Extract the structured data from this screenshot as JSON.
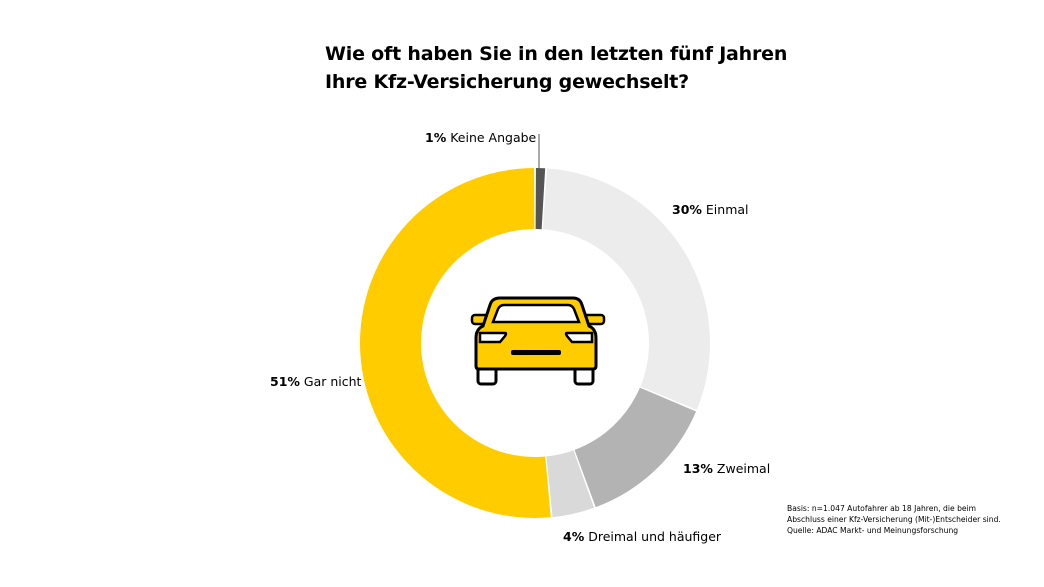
{
  "title": {
    "line1": "Wie oft haben Sie in den letzten fünf Jahren",
    "line2": "Ihre Kfz-Versicherung gewechselt?"
  },
  "chart_data": {
    "type": "pie",
    "donut": true,
    "categories": [
      "Keine Angabe",
      "Einmal",
      "Zweimal",
      "Dreimal und häufiger",
      "Gar nicht"
    ],
    "values": [
      1,
      30,
      13,
      4,
      51
    ],
    "value_labels": [
      "1%",
      "30%",
      "13%",
      "4%",
      "51%"
    ],
    "colors": [
      "#555555",
      "#ececec",
      "#b3b3b3",
      "#d9d9d9",
      "#ffcc00"
    ],
    "center_icon": "car-icon"
  },
  "footnote": {
    "line1": "Basis: n=1.047 Autofahrer ab 18 Jahren, die beim",
    "line2": "Abschluss einer Kfz-Versicherung (Mit-)Entscheider sind.",
    "line3": "Quelle: ADAC Markt- und Meinungsforschung"
  }
}
